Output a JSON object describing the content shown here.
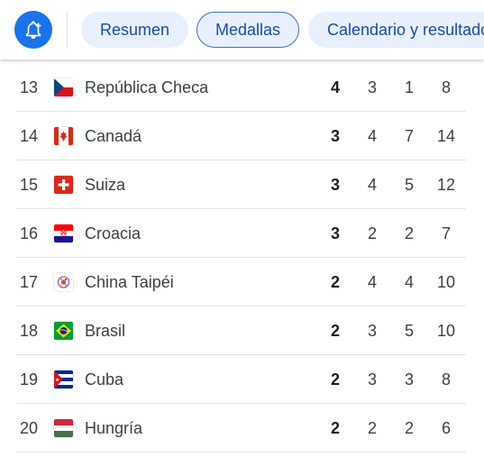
{
  "tabs": [
    {
      "label": "Resumen"
    },
    {
      "label": "Medallas"
    },
    {
      "label": "Calendario y resultados"
    }
  ],
  "rows": [
    {
      "rank": "13",
      "country": "República Checa",
      "flag": "czech-flag",
      "gold": "4",
      "silver": "3",
      "bronze": "1",
      "total": "8"
    },
    {
      "rank": "14",
      "country": "Canadá",
      "flag": "canada-flag",
      "gold": "3",
      "silver": "4",
      "bronze": "7",
      "total": "14"
    },
    {
      "rank": "15",
      "country": "Suiza",
      "flag": "switzerland-flag",
      "gold": "3",
      "silver": "4",
      "bronze": "5",
      "total": "12"
    },
    {
      "rank": "16",
      "country": "Croacia",
      "flag": "croatia-flag",
      "gold": "3",
      "silver": "2",
      "bronze": "2",
      "total": "7"
    },
    {
      "rank": "17",
      "country": "China Taipéi",
      "flag": "chinese-taipei-flag",
      "gold": "2",
      "silver": "4",
      "bronze": "4",
      "total": "10"
    },
    {
      "rank": "18",
      "country": "Brasil",
      "flag": "brazil-flag",
      "gold": "2",
      "silver": "3",
      "bronze": "5",
      "total": "10"
    },
    {
      "rank": "19",
      "country": "Cuba",
      "flag": "cuba-flag",
      "gold": "2",
      "silver": "3",
      "bronze": "3",
      "total": "8"
    },
    {
      "rank": "20",
      "country": "Hungría",
      "flag": "hungary-flag",
      "gold": "2",
      "silver": "2",
      "bronze": "2",
      "total": "6"
    }
  ],
  "colors": {
    "accent": "#1a73e8",
    "chip_bg": "#e8f0fe",
    "chip_text": "#174ea6"
  }
}
